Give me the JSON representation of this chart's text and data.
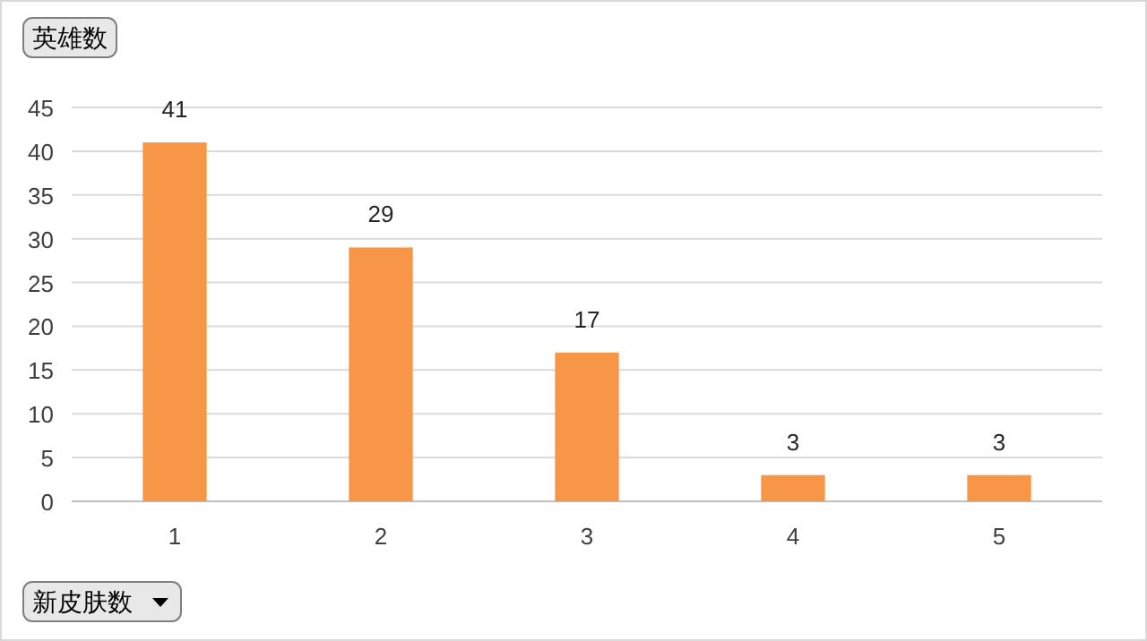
{
  "chart_data": {
    "type": "bar",
    "ylabel": "英雄数",
    "xlabel": "新皮肤数",
    "categories": [
      "1",
      "2",
      "3",
      "4",
      "5"
    ],
    "values": [
      41,
      29,
      17,
      3,
      3
    ],
    "color": "#f79646",
    "ylim": [
      0,
      45
    ],
    "yticks": [
      0,
      5,
      10,
      15,
      20,
      25,
      30,
      35,
      40,
      45
    ],
    "grid": "y",
    "data_labels": true
  }
}
